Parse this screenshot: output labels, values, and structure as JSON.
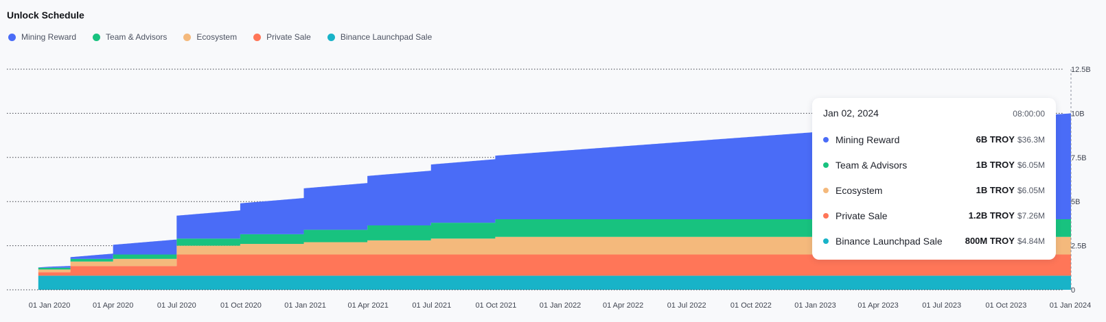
{
  "title": "Unlock Schedule",
  "colors": {
    "mining": "#4a6cf7",
    "team": "#18c27f",
    "ecosystem": "#f4b97c",
    "private": "#ff7658",
    "launchpad": "#18b3c8",
    "grid": "#3a3d45",
    "axis_text": "#3f4450"
  },
  "legend": [
    {
      "label": "Mining Reward",
      "color": "#4a6cf7"
    },
    {
      "label": "Team & Advisors",
      "color": "#18c27f"
    },
    {
      "label": "Ecosystem",
      "color": "#f4b97c"
    },
    {
      "label": "Private Sale",
      "color": "#ff7658"
    },
    {
      "label": "Binance Launchpad Sale",
      "color": "#18b3c8"
    }
  ],
  "tooltip": {
    "date": "Jan 02, 2024",
    "time": "08:00:00",
    "rows": [
      {
        "label": "Mining Reward",
        "amount": "6B TROY",
        "usd": "$36.3M",
        "color": "#4a6cf7"
      },
      {
        "label": "Team & Advisors",
        "amount": "1B TROY",
        "usd": "$6.05M",
        "color": "#18c27f"
      },
      {
        "label": "Ecosystem",
        "amount": "1B TROY",
        "usd": "$6.05M",
        "color": "#f4b97c"
      },
      {
        "label": "Private Sale",
        "amount": "1.2B TROY",
        "usd": "$7.26M",
        "color": "#ff7658"
      },
      {
        "label": "Binance Launchpad Sale",
        "amount": "800M TROY",
        "usd": "$4.84M",
        "color": "#18b3c8"
      }
    ]
  },
  "chart_data": {
    "type": "area",
    "stacked": true,
    "title": "Unlock Schedule",
    "x_start": "2019-11-01",
    "x_end": "2024-01-02",
    "ylim": [
      0,
      12500000000
    ],
    "ytick_values": [
      0,
      2500000000,
      5000000000,
      7500000000,
      10000000000,
      12500000000
    ],
    "ytick_labels": [
      "0",
      "2.5B",
      "5B",
      "7.5B",
      "10B",
      "12.5B"
    ],
    "xtick_dates": [
      "2020-01-01",
      "2020-04-01",
      "2020-07-01",
      "2020-10-01",
      "2021-01-01",
      "2021-04-01",
      "2021-07-01",
      "2021-10-01",
      "2022-01-01",
      "2022-04-01",
      "2022-07-01",
      "2022-10-01",
      "2023-01-01",
      "2023-04-01",
      "2023-07-01",
      "2023-10-01",
      "2024-01-01"
    ],
    "xtick_labels": [
      "01 Jan 2020",
      "01 Apr 2020",
      "01 Jul 2020",
      "01 Oct 2020",
      "01 Jan 2021",
      "01 Apr 2021",
      "01 Jul 2021",
      "01 Oct 2021",
      "01 Jan 2022",
      "01 Apr 2022",
      "01 Jul 2022",
      "01 Oct 2022",
      "01 Jan 2023",
      "01 Apr 2023",
      "01 Jul 2023",
      "01 Oct 2023",
      "01 Jan 2024"
    ],
    "grid": true,
    "legend_position": "top-left",
    "series": [
      {
        "name": "Binance Launchpad Sale",
        "color": "#18b3c8",
        "points": [
          [
            "2019-12-16",
            800000000.0
          ],
          [
            "2024-01-02",
            800000000.0
          ]
        ]
      },
      {
        "name": "Private Sale",
        "color": "#ff7658",
        "points": [
          [
            "2019-12-16",
            200000000.0
          ],
          [
            "2020-01-31",
            200000000.0
          ],
          [
            "2020-01-31",
            550000000.0
          ],
          [
            "2020-07-01",
            550000000.0
          ],
          [
            "2020-07-01",
            1200000000.0
          ],
          [
            "2024-01-02",
            1200000000.0
          ]
        ]
      },
      {
        "name": "Ecosystem",
        "color": "#f4b97c",
        "points": [
          [
            "2019-12-16",
            150000000.0
          ],
          [
            "2020-01-31",
            150000000.0
          ],
          [
            "2020-01-31",
            250000000.0
          ],
          [
            "2020-04-01",
            250000000.0
          ],
          [
            "2020-04-01",
            400000000.0
          ],
          [
            "2020-07-01",
            400000000.0
          ],
          [
            "2020-07-01",
            500000000.0
          ],
          [
            "2020-09-30",
            500000000.0
          ],
          [
            "2020-09-30",
            600000000.0
          ],
          [
            "2020-12-30",
            600000000.0
          ],
          [
            "2020-12-30",
            700000000.0
          ],
          [
            "2021-03-31",
            700000000.0
          ],
          [
            "2021-03-31",
            800000000.0
          ],
          [
            "2021-06-30",
            800000000.0
          ],
          [
            "2021-06-30",
            900000000.0
          ],
          [
            "2021-09-30",
            900000000.0
          ],
          [
            "2021-09-30",
            1000000000.0
          ],
          [
            "2024-01-02",
            1000000000.0
          ]
        ]
      },
      {
        "name": "Team & Advisors",
        "color": "#18c27f",
        "points": [
          [
            "2019-12-16",
            100000000.0
          ],
          [
            "2020-01-31",
            100000000.0
          ],
          [
            "2020-01-31",
            150000000.0
          ],
          [
            "2020-04-01",
            150000000.0
          ],
          [
            "2020-04-01",
            250000000.0
          ],
          [
            "2020-07-01",
            250000000.0
          ],
          [
            "2020-07-01",
            400000000.0
          ],
          [
            "2020-09-30",
            400000000.0
          ],
          [
            "2020-09-30",
            550000000.0
          ],
          [
            "2020-12-30",
            550000000.0
          ],
          [
            "2020-12-30",
            700000000.0
          ],
          [
            "2021-03-31",
            700000000.0
          ],
          [
            "2021-03-31",
            850000000.0
          ],
          [
            "2021-06-30",
            850000000.0
          ],
          [
            "2021-06-30",
            900000000.0
          ],
          [
            "2021-09-30",
            900000000.0
          ],
          [
            "2021-09-30",
            1000000000.0
          ],
          [
            "2024-01-02",
            1000000000.0
          ]
        ]
      },
      {
        "name": "Mining Reward",
        "color": "#4a6cf7",
        "points": [
          [
            "2019-12-16",
            20000000.0
          ],
          [
            "2020-01-01",
            60000000.0
          ],
          [
            "2020-01-31",
            100000000.0
          ],
          [
            "2020-04-01",
            300000000.0
          ],
          [
            "2020-04-01",
            550000000.0
          ],
          [
            "2020-07-01",
            850000000.0
          ],
          [
            "2020-07-01",
            1300000000.0
          ],
          [
            "2020-09-30",
            1600000000.0
          ],
          [
            "2020-09-30",
            1750000000.0
          ],
          [
            "2020-12-30",
            2050000000.0
          ],
          [
            "2020-12-30",
            2350000000.0
          ],
          [
            "2021-03-31",
            2650000000.0
          ],
          [
            "2021-03-31",
            2800000000.0
          ],
          [
            "2021-06-30",
            3100000000.0
          ],
          [
            "2021-06-30",
            3300000000.0
          ],
          [
            "2021-09-30",
            3600000000.0
          ],
          [
            "2024-01-02",
            6000000000.0
          ]
        ]
      }
    ]
  }
}
